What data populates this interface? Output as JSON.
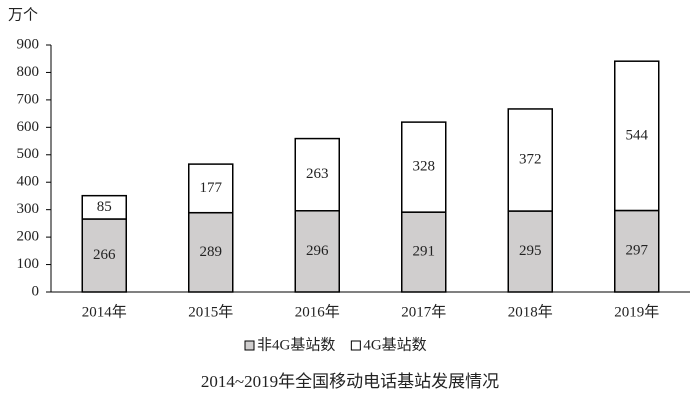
{
  "chart_data": {
    "type": "stacked_bar",
    "title": "2014~2019年全国移动电话基站发展情况",
    "y_label": "万个",
    "categories": [
      "2014年",
      "2015年",
      "2016年",
      "2017年",
      "2018年",
      "2019年"
    ],
    "series": [
      {
        "name": "非4G基站数",
        "color": "#d0cece",
        "values": [
          266,
          289,
          296,
          291,
          295,
          297
        ]
      },
      {
        "name": "4G基站数",
        "color": "#ffffff",
        "values": [
          85,
          177,
          263,
          328,
          372,
          544
        ]
      }
    ],
    "ylim": [
      0,
      900
    ],
    "yticks": [
      0,
      100,
      200,
      300,
      400,
      500,
      600,
      700,
      800,
      900
    ],
    "grid": false
  }
}
